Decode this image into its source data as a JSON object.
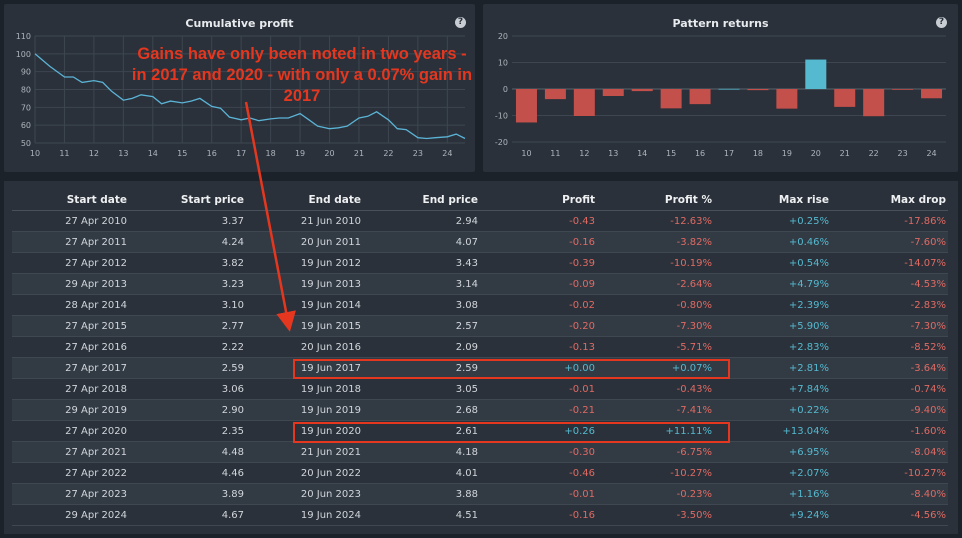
{
  "panels": {
    "cumulative_title": "Cumulative profit",
    "pattern_title": "Pattern returns",
    "help_glyph": "?"
  },
  "chart_data": [
    {
      "type": "line",
      "title": "Cumulative profit",
      "x_ticks": [
        "10",
        "11",
        "12",
        "13",
        "14",
        "15",
        "16",
        "17",
        "18",
        "19",
        "20",
        "21",
        "22",
        "23",
        "24"
      ],
      "y_ticks": [
        50,
        60,
        70,
        80,
        90,
        100,
        110
      ],
      "ylim": [
        50,
        110
      ],
      "xlim": [
        10,
        24.6
      ],
      "grid": true,
      "color": "#5bb3d6",
      "points": [
        [
          10,
          100
        ],
        [
          10.5,
          93
        ],
        [
          11,
          87
        ],
        [
          11.3,
          87
        ],
        [
          11.6,
          84
        ],
        [
          12,
          85
        ],
        [
          12.3,
          84
        ],
        [
          12.6,
          79
        ],
        [
          13,
          74
        ],
        [
          13.3,
          75
        ],
        [
          13.6,
          77
        ],
        [
          14,
          76
        ],
        [
          14.3,
          72
        ],
        [
          14.6,
          73.5
        ],
        [
          15,
          72.5
        ],
        [
          15.3,
          73.5
        ],
        [
          15.6,
          75
        ],
        [
          16,
          70.5
        ],
        [
          16.3,
          69.5
        ],
        [
          16.6,
          64.5
        ],
        [
          17,
          63
        ],
        [
          17.3,
          64
        ],
        [
          17.6,
          62.5
        ],
        [
          18,
          63.5
        ],
        [
          18.3,
          64
        ],
        [
          18.6,
          64
        ],
        [
          19,
          66.5
        ],
        [
          19.3,
          63
        ],
        [
          19.6,
          59.5
        ],
        [
          20,
          58
        ],
        [
          20.3,
          58.5
        ],
        [
          20.6,
          59.5
        ],
        [
          21,
          64
        ],
        [
          21.3,
          65
        ],
        [
          21.6,
          67.5
        ],
        [
          22,
          63
        ],
        [
          22.3,
          58
        ],
        [
          22.6,
          57.5
        ],
        [
          23,
          53
        ],
        [
          23.3,
          52.5
        ],
        [
          23.6,
          53
        ],
        [
          24,
          53.5
        ],
        [
          24.3,
          55
        ],
        [
          24.6,
          52.5
        ]
      ]
    },
    {
      "type": "bar",
      "title": "Pattern returns",
      "categories": [
        "10",
        "11",
        "12",
        "13",
        "14",
        "15",
        "16",
        "17",
        "18",
        "19",
        "20",
        "21",
        "22",
        "23",
        "24"
      ],
      "values": [
        -12.63,
        -3.82,
        -10.19,
        -2.64,
        -0.8,
        -7.3,
        -5.71,
        0.07,
        -0.43,
        -7.41,
        11.11,
        -6.75,
        -10.27,
        -0.23,
        -3.5
      ],
      "y_ticks": [
        -20,
        -10,
        0,
        10,
        20
      ],
      "ylim": [
        -20,
        20
      ],
      "grid": true,
      "pos_color": "#55b9cf",
      "neg_color": "#c4504b"
    }
  ],
  "annotation": {
    "text": "Gains have only been noted in two years - in 2017 and 2020 -  with only a 0.07% gain in 2017",
    "color": "#e5371f"
  },
  "table": {
    "headers": [
      "Start date",
      "Start price",
      "End date",
      "End price",
      "Profit",
      "Profit %",
      "Max rise",
      "Max drop"
    ],
    "rows": [
      [
        "27 Apr 2010",
        "3.37",
        "21 Jun 2010",
        "2.94",
        "-0.43",
        "-12.63%",
        "+0.25%",
        "-17.86%"
      ],
      [
        "27 Apr 2011",
        "4.24",
        "20 Jun 2011",
        "4.07",
        "-0.16",
        "-3.82%",
        "+0.46%",
        "-7.60%"
      ],
      [
        "27 Apr 2012",
        "3.82",
        "19 Jun 2012",
        "3.43",
        "-0.39",
        "-10.19%",
        "+0.54%",
        "-14.07%"
      ],
      [
        "29 Apr 2013",
        "3.23",
        "19 Jun 2013",
        "3.14",
        "-0.09",
        "-2.64%",
        "+4.79%",
        "-4.53%"
      ],
      [
        "28 Apr 2014",
        "3.10",
        "19 Jun 2014",
        "3.08",
        "-0.02",
        "-0.80%",
        "+2.39%",
        "-2.83%"
      ],
      [
        "27 Apr 2015",
        "2.77",
        "19 Jun 2015",
        "2.57",
        "-0.20",
        "-7.30%",
        "+5.90%",
        "-7.30%"
      ],
      [
        "27 Apr 2016",
        "2.22",
        "20 Jun 2016",
        "2.09",
        "-0.13",
        "-5.71%",
        "+2.83%",
        "-8.52%"
      ],
      [
        "27 Apr 2017",
        "2.59",
        "19 Jun 2017",
        "2.59",
        "+0.00",
        "+0.07%",
        "+2.81%",
        "-3.64%"
      ],
      [
        "27 Apr 2018",
        "3.06",
        "19 Jun 2018",
        "3.05",
        "-0.01",
        "-0.43%",
        "+7.84%",
        "-0.74%"
      ],
      [
        "29 Apr 2019",
        "2.90",
        "19 Jun 2019",
        "2.68",
        "-0.21",
        "-7.41%",
        "+0.22%",
        "-9.40%"
      ],
      [
        "27 Apr 2020",
        "2.35",
        "19 Jun 2020",
        "2.61",
        "+0.26",
        "+11.11%",
        "+13.04%",
        "-1.60%"
      ],
      [
        "27 Apr 2021",
        "4.48",
        "21 Jun 2021",
        "4.18",
        "-0.30",
        "-6.75%",
        "+6.95%",
        "-8.04%"
      ],
      [
        "27 Apr 2022",
        "4.46",
        "20 Jun 2022",
        "4.01",
        "-0.46",
        "-10.27%",
        "+2.07%",
        "-10.27%"
      ],
      [
        "27 Apr 2023",
        "3.89",
        "20 Jun 2023",
        "3.88",
        "-0.01",
        "-0.23%",
        "+1.16%",
        "-8.40%"
      ],
      [
        "29 Apr 2024",
        "4.67",
        "19 Jun 2024",
        "4.51",
        "-0.16",
        "-3.50%",
        "+9.24%",
        "-4.56%"
      ]
    ]
  }
}
